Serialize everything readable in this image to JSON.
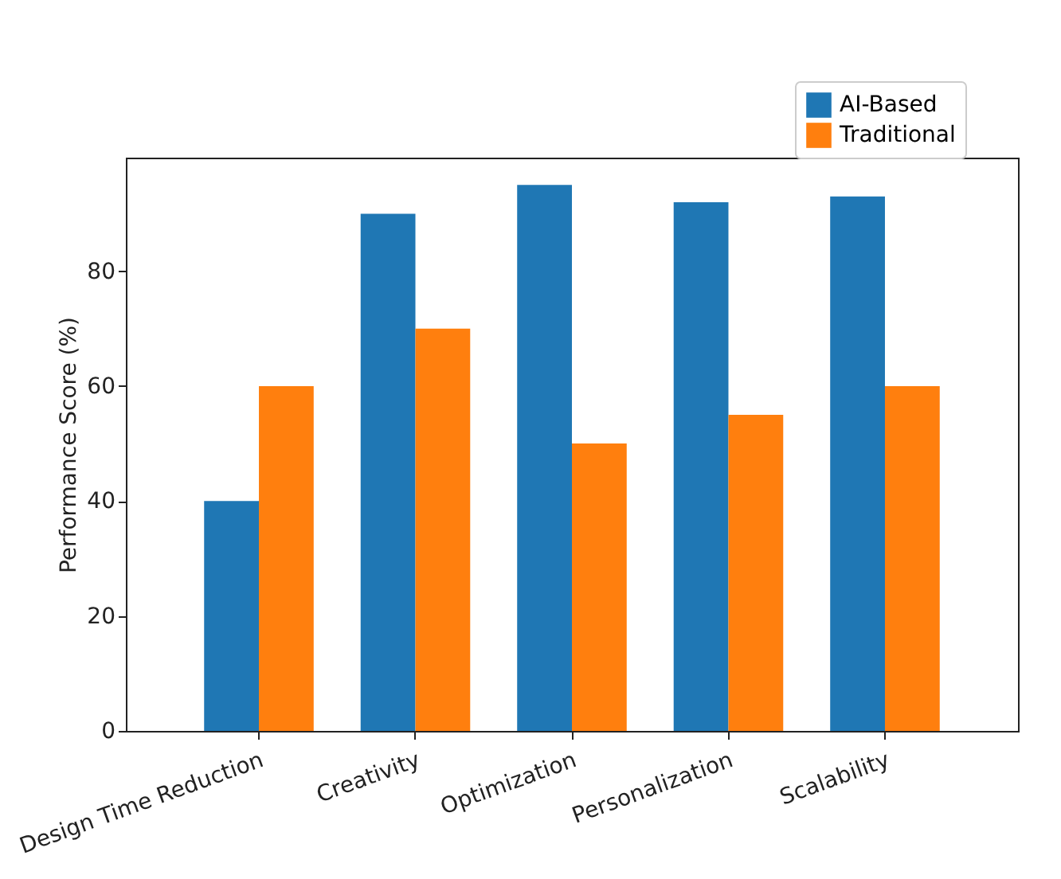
{
  "chart_data": {
    "type": "bar",
    "ylabel": "Performance Score (%)",
    "categories": [
      "Design Time Reduction",
      "Creativity",
      "Optimization",
      "Personalization",
      "Scalability"
    ],
    "series": [
      {
        "name": "AI-Based",
        "color": "#1f77b4",
        "values": [
          40,
          90,
          95,
          92,
          93
        ]
      },
      {
        "name": "Traditional",
        "color": "#ff7f0e",
        "values": [
          60,
          70,
          50,
          55,
          60
        ]
      }
    ],
    "ylim": [
      0,
      99.75
    ],
    "yticks": [
      0,
      20,
      40,
      60,
      80
    ],
    "grid": false,
    "legend": "top right"
  }
}
